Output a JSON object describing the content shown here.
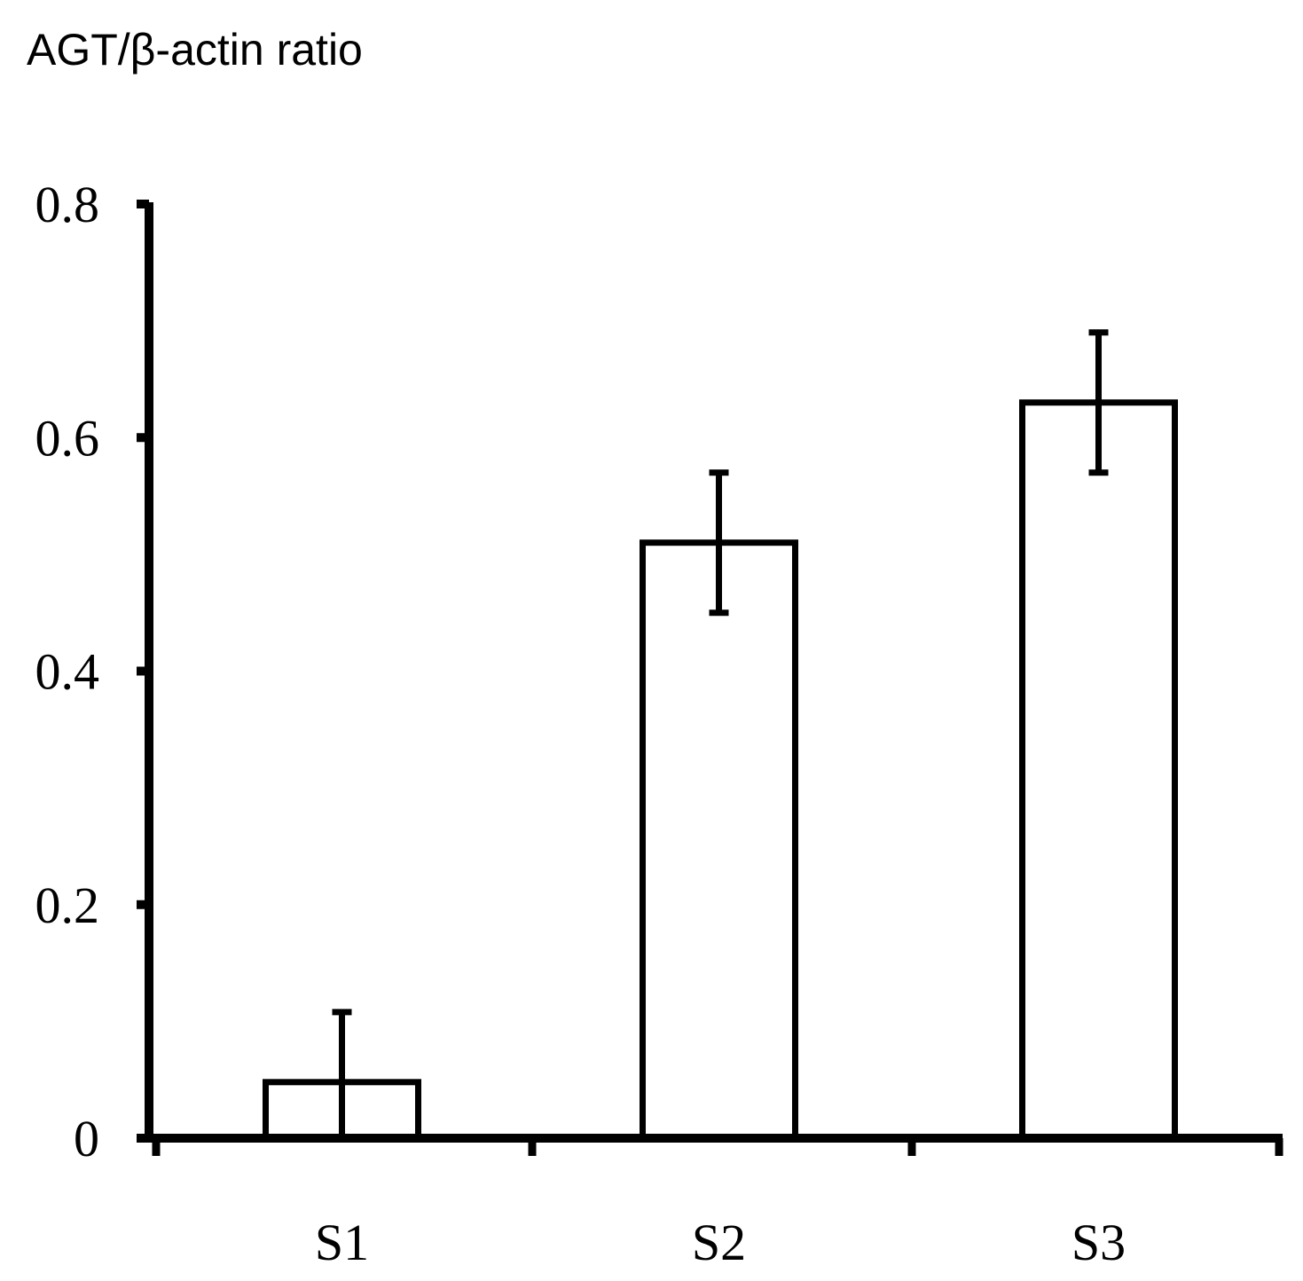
{
  "chart_data": {
    "type": "bar",
    "title": "",
    "ylabel": "AGT/β-actin ratio",
    "xlabel": "",
    "categories": [
      "S1",
      "S2",
      "S3"
    ],
    "values": [
      0.048,
      0.51,
      0.63
    ],
    "error": [
      0.06,
      0.06,
      0.06
    ],
    "ylim": [
      0,
      0.8
    ],
    "yticks": [
      "0",
      "0.2",
      "0.4",
      "0.6",
      "0.8"
    ],
    "ytick_values": [
      0,
      0.2,
      0.4,
      0.6,
      0.8
    ],
    "grid": false,
    "legend": "none",
    "bar_fill": "#ffffff",
    "bar_stroke": "#000000",
    "axis_color": "#000000"
  }
}
